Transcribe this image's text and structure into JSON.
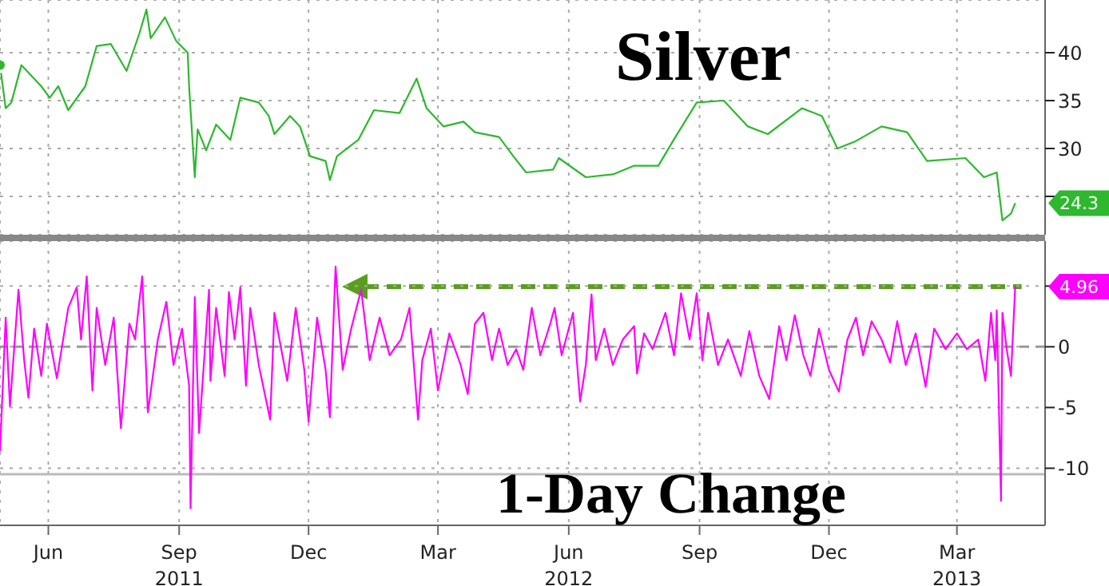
{
  "chart_data": [
    {
      "type": "line",
      "title": "Silver",
      "x": [
        "2011-05-12",
        "2011-05-16",
        "2011-05-20",
        "2011-05-27",
        "2011-06-03",
        "2011-06-10",
        "2011-06-16",
        "2011-06-22",
        "2011-06-29",
        "2011-07-11",
        "2011-07-19",
        "2011-07-29",
        "2011-08-09",
        "2011-08-18",
        "2011-08-23",
        "2011-08-26",
        "2011-09-05",
        "2011-09-13",
        "2011-09-21",
        "2011-09-22",
        "2011-09-26",
        "2011-09-28",
        "2011-10-04",
        "2011-10-11",
        "2011-10-21",
        "2011-10-28",
        "2011-11-10",
        "2011-11-17",
        "2011-11-21",
        "2011-12-02",
        "2011-12-09",
        "2011-12-16",
        "2011-12-27",
        "2011-12-30",
        "2012-01-04",
        "2012-01-19",
        "2012-01-30",
        "2012-02-17",
        "2012-02-29",
        "2012-03-07",
        "2012-03-19",
        "2012-04-02",
        "2012-04-10",
        "2012-04-27",
        "2012-05-07",
        "2012-05-16",
        "2012-06-04",
        "2012-06-08",
        "2012-06-27",
        "2012-07-16",
        "2012-07-31",
        "2012-08-17",
        "2012-08-29",
        "2012-09-13",
        "2012-10-02",
        "2012-10-19",
        "2012-11-02",
        "2012-11-26",
        "2012-12-10",
        "2012-12-21",
        "2013-01-02",
        "2013-01-21",
        "2013-02-08",
        "2013-02-22",
        "2013-03-21",
        "2013-04-03",
        "2013-04-12",
        "2013-04-16",
        "2013-04-22",
        "2013-04-25"
      ],
      "series": [
        {
          "color": "#2db82d",
          "values": [
            38.7,
            34.2,
            34.8,
            38.7,
            37.6,
            36.5,
            35.3,
            36.5,
            34.0,
            36.5,
            40.7,
            40.9,
            38.1,
            42,
            44.5,
            41.5,
            43.7,
            41.2,
            40,
            36.5,
            27,
            32,
            29.8,
            32.5,
            30.9,
            35.3,
            34.8,
            33.4,
            31.5,
            33.4,
            32.3,
            29.2,
            28.7,
            26.7,
            29.2,
            30.9,
            34,
            33.7,
            37.3,
            34.2,
            32.3,
            32.8,
            31.7,
            31.2,
            29.2,
            27.5,
            27.8,
            29,
            27,
            27.3,
            28.2,
            28.2,
            31.2,
            34.8,
            35,
            32.3,
            31.5,
            34.2,
            33.4,
            30,
            30.7,
            32.3,
            31.7,
            28.7,
            29,
            27,
            27.5,
            22.5,
            23.2,
            24.3
          ]
        }
      ],
      "xlim": [
        "2011-05-12",
        "2013-05-16"
      ],
      "xticks": [
        {
          "value": "2011-06-15",
          "label": null
        },
        {
          "value": "2011-09-15",
          "label": null
        },
        {
          "value": "2011-12-15",
          "label": null
        },
        {
          "value": "2012-03-15",
          "label": null
        },
        {
          "value": "2012-06-15",
          "label": null
        },
        {
          "value": "2012-09-15",
          "label": null
        },
        {
          "value": "2012-12-15",
          "label": null
        },
        {
          "value": "2013-03-15",
          "label": null
        }
      ],
      "ylim": [
        21,
        45.5
      ],
      "yticks": [
        {
          "value": 25,
          "label": null
        },
        30,
        35,
        40
      ],
      "grid": true,
      "tick_labels": "y",
      "annotations": [
        {
          "text": "24.3",
          "x": "2013-04-25",
          "y": 24.3
        }
      ]
    },
    {
      "type": "line",
      "title": "1-Day Change",
      "x": [
        "2011-05-12",
        "2011-05-16",
        "2011-05-19",
        "2011-05-25",
        "2011-05-29",
        "2011-06-01",
        "2011-06-05",
        "2011-06-10",
        "2011-06-14",
        "2011-06-21",
        "2011-06-29",
        "2011-07-05",
        "2011-07-08",
        "2011-07-12",
        "2011-07-16",
        "2011-07-19",
        "2011-07-25",
        "2011-07-31",
        "2011-08-05",
        "2011-08-11",
        "2011-08-15",
        "2011-08-20",
        "2011-08-24",
        "2011-08-31",
        "2011-09-06",
        "2011-09-11",
        "2011-09-17",
        "2011-09-22",
        "2011-09-23",
        "2011-09-26",
        "2011-09-29",
        "2011-10-06",
        "2011-10-07",
        "2011-10-11",
        "2011-10-17",
        "2011-10-20",
        "2011-10-24",
        "2011-10-28",
        "2011-11-01",
        "2011-11-04",
        "2011-11-10",
        "2011-11-18",
        "2011-11-21",
        "2011-11-30",
        "2011-12-06",
        "2011-12-12",
        "2011-12-15",
        "2011-12-21",
        "2011-12-27",
        "2011-12-30",
        "2012-01-03",
        "2012-01-08",
        "2012-01-14",
        "2012-01-21",
        "2012-01-27",
        "2012-02-03",
        "2012-02-10",
        "2012-02-18",
        "2012-02-24",
        "2012-03-01",
        "2012-03-04",
        "2012-03-10",
        "2012-03-15",
        "2012-03-23",
        "2012-03-31",
        "2012-04-05",
        "2012-04-10",
        "2012-04-16",
        "2012-04-22",
        "2012-04-27",
        "2012-05-03",
        "2012-05-09",
        "2012-05-14",
        "2012-05-20",
        "2012-05-26",
        "2012-06-02",
        "2012-06-05",
        "2012-06-10",
        "2012-06-18",
        "2012-06-23",
        "2012-06-27",
        "2012-07-01",
        "2012-07-04",
        "2012-07-10",
        "2012-07-16",
        "2012-07-23",
        "2012-07-31",
        "2012-08-02",
        "2012-08-07",
        "2012-08-13",
        "2012-08-22",
        "2012-08-28",
        "2012-09-02",
        "2012-09-08",
        "2012-09-13",
        "2012-09-17",
        "2012-09-21",
        "2012-09-28",
        "2012-10-05",
        "2012-10-14",
        "2012-10-20",
        "2012-10-27",
        "2012-11-03",
        "2012-11-10",
        "2012-11-15",
        "2012-11-21",
        "2012-11-27",
        "2012-12-02",
        "2012-12-08",
        "2012-12-15",
        "2012-12-22",
        "2012-12-28",
        "2013-01-03",
        "2013-01-08",
        "2013-01-14",
        "2013-01-21",
        "2013-01-27",
        "2013-02-01",
        "2013-02-07",
        "2013-02-14",
        "2013-02-21",
        "2013-02-27",
        "2013-03-07",
        "2013-03-15",
        "2013-03-22",
        "2013-03-30",
        "2013-04-04",
        "2013-04-08",
        "2013-04-11",
        "2013-04-12",
        "2013-04-15",
        "2013-04-16",
        "2013-04-19",
        "2013-04-22",
        "2013-04-25"
      ],
      "series": [
        {
          "color": "#ff00ff",
          "values": [
            -8.6,
            2.4,
            -4.9,
            4.7,
            -1.1,
            -4.2,
            1.5,
            -2.4,
            1.9,
            -2.6,
            3.2,
            4.9,
            0.6,
            5.8,
            -3.6,
            3.2,
            -1.5,
            2.4,
            -6.7,
            1.9,
            0.6,
            5.8,
            -5.4,
            0.6,
            3.7,
            -1.5,
            1.5,
            -3.2,
            -13.3,
            4.1,
            -7.1,
            4.7,
            -2.8,
            3.2,
            -2.4,
            4.5,
            0.6,
            4.9,
            -3.2,
            3.2,
            -1.5,
            -6,
            2.8,
            -2.8,
            3.2,
            -1.9,
            -6.2,
            2.4,
            -1.9,
            -5.8,
            6.6,
            -1.9,
            1.5,
            4.7,
            -1.1,
            2.4,
            -0.7,
            0.6,
            3.2,
            -6,
            -1.1,
            1.5,
            -3.6,
            1.1,
            -1.5,
            -3.9,
            1.9,
            2.8,
            -1.1,
            1.5,
            -1.5,
            -0.2,
            -1.9,
            3.2,
            -0.7,
            1.9,
            3.2,
            -0.7,
            2.8,
            -4.5,
            -1.5,
            4.3,
            -1.1,
            1.5,
            -1.5,
            0.6,
            1.7,
            -2.2,
            1.1,
            -0.2,
            2.8,
            -0.7,
            4.4,
            0.6,
            4.4,
            -1.1,
            2.8,
            -1.5,
            0.6,
            -2.4,
            1.3,
            -2.4,
            -4.3,
            1.7,
            -1.1,
            2.6,
            -0.7,
            -2.4,
            1.5,
            -1.9,
            -3.7,
            0.6,
            2.4,
            -0.7,
            2.1,
            0.6,
            -1.3,
            2.1,
            -1.5,
            1.1,
            -3.3,
            1.5,
            -0.2,
            1.1,
            -0.2,
            0.6,
            -2.8,
            2.8,
            -1.1,
            3,
            -12.7,
            2.8,
            -0.2,
            -2.4,
            4.96
          ]
        }
      ],
      "xlim": [
        "2011-05-12",
        "2013-05-16"
      ],
      "xticks": [
        {
          "value": "2011-06-15",
          "label": "Jun"
        },
        {
          "value": "2011-09-15",
          "label": "Sep\n2011"
        },
        {
          "value": "2011-12-15",
          "label": "Dec"
        },
        {
          "value": "2012-03-15",
          "label": "Mar"
        },
        {
          "value": "2012-06-15",
          "label": "Jun\n2012"
        },
        {
          "value": "2012-09-15",
          "label": "Sep"
        },
        {
          "value": "2012-12-15",
          "label": "Dec"
        },
        {
          "value": "2013-03-15",
          "label": "Mar\n2013"
        }
      ],
      "ylim": [
        -14.7,
        8.7
      ],
      "yticks": [
        {
          "value": 5,
          "label": null
        },
        0,
        -5,
        -10
      ],
      "grid": true,
      "ref_lines": [
        {
          "axis": "y",
          "value": 0,
          "color": "#999999",
          "line_style": "dashed"
        },
        {
          "axis": "y",
          "value": -10.5,
          "color": "#bbbbbb"
        }
      ],
      "annotations": [
        {
          "text": "4.96",
          "x": "2013-04-25",
          "y": 4.96
        }
      ]
    }
  ]
}
